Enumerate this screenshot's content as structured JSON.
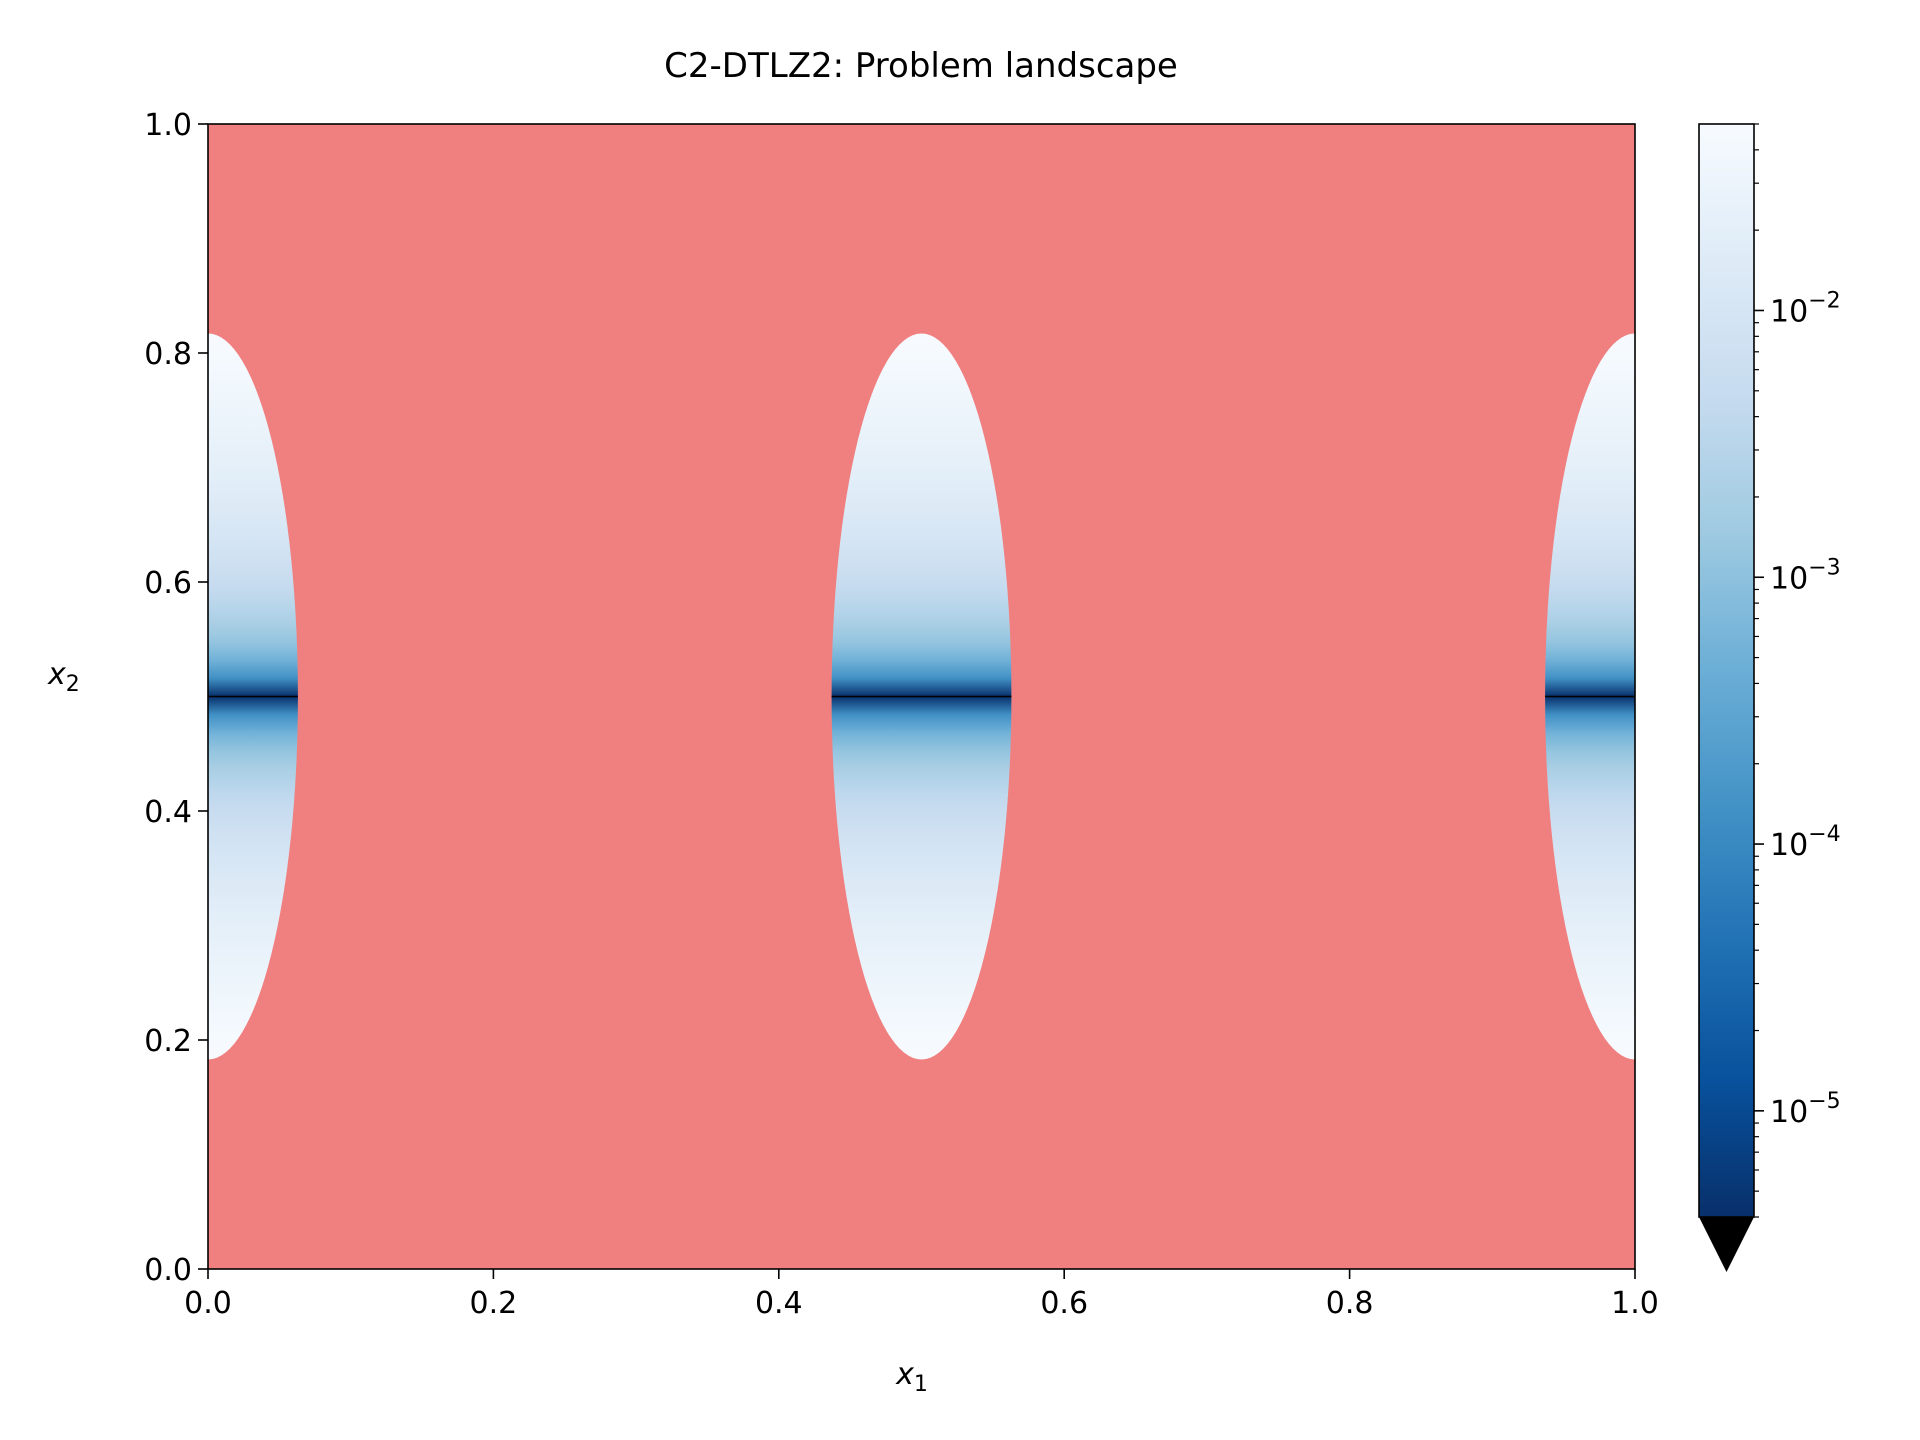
{
  "chart_data": {
    "type": "heatmap",
    "title": "C2-DTLZ2: Problem landscape",
    "xlabel": "x",
    "xlabel_sub": "1",
    "ylabel": "x",
    "ylabel_sub": "2",
    "xlim": [
      0.0,
      1.0
    ],
    "ylim": [
      0.0,
      1.0
    ],
    "x_ticks": [
      0.0,
      0.2,
      0.4,
      0.6,
      0.8,
      1.0
    ],
    "x_tick_labels": [
      "0.0",
      "0.2",
      "0.4",
      "0.6",
      "0.8",
      "1.0"
    ],
    "y_ticks": [
      0.0,
      0.2,
      0.4,
      0.6,
      0.8,
      1.0
    ],
    "y_tick_labels": [
      "0.0",
      "0.2",
      "0.4",
      "0.6",
      "0.8",
      "1.0"
    ],
    "infeasible_color": "#f08080",
    "feasible_regions": [
      {
        "x_center": 0.0,
        "half_width": 0.063,
        "y_min": 0.183,
        "y_max": 0.817
      },
      {
        "x_center": 0.5,
        "half_width": 0.063,
        "y_min": 0.183,
        "y_max": 0.817
      },
      {
        "x_center": 1.0,
        "half_width": 0.063,
        "y_min": 0.183,
        "y_max": 0.817
      }
    ],
    "optimal_line_y": 0.5,
    "colorbar": {
      "scale": "log",
      "colormap": "Blues_r",
      "range": [
        4e-06,
        0.05
      ],
      "extend": "min",
      "ticks": [
        1e-05,
        0.0001,
        0.001,
        0.01
      ],
      "tick_labels": [
        {
          "base": "10",
          "exp": "−5"
        },
        {
          "base": "10",
          "exp": "−4"
        },
        {
          "base": "10",
          "exp": "−3"
        },
        {
          "base": "10",
          "exp": "−2"
        }
      ],
      "colors": [
        "#08306b",
        "#08519c",
        "#2171b5",
        "#4292c6",
        "#6baed6",
        "#9ecae1",
        "#c6dbef",
        "#deebf7",
        "#f7fbff"
      ]
    }
  }
}
